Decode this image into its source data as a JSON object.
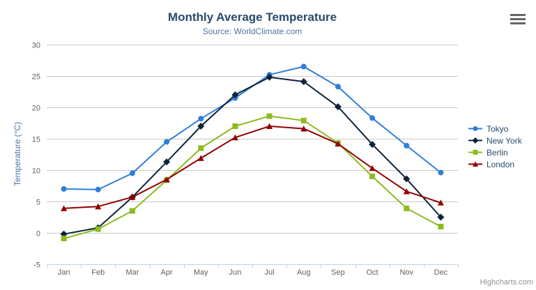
{
  "chart_data": {
    "type": "line",
    "title": "Monthly Average Temperature",
    "subtitle": "Source: WorldClimate.com",
    "xlabel": "",
    "ylabel": "Temperature (°C)",
    "categories": [
      "Jan",
      "Feb",
      "Mar",
      "Apr",
      "May",
      "Jun",
      "Jul",
      "Aug",
      "Sep",
      "Oct",
      "Nov",
      "Dec"
    ],
    "series": [
      {
        "name": "Tokyo",
        "color": "#2f7ed8",
        "marker": "circle",
        "values": [
          7.0,
          6.9,
          9.5,
          14.5,
          18.2,
          21.5,
          25.2,
          26.5,
          23.3,
          18.3,
          13.9,
          9.6
        ]
      },
      {
        "name": "New York",
        "color": "#0d233a",
        "marker": "diamond",
        "values": [
          -0.2,
          0.8,
          5.7,
          11.3,
          17.0,
          22.0,
          24.8,
          24.1,
          20.1,
          14.1,
          8.6,
          2.5
        ]
      },
      {
        "name": "Berlin",
        "color": "#8bbc21",
        "marker": "square",
        "values": [
          -0.9,
          0.6,
          3.5,
          8.4,
          13.5,
          17.0,
          18.6,
          17.9,
          14.3,
          9.0,
          3.9,
          1.0
        ]
      },
      {
        "name": "London",
        "color": "#910000",
        "marker": "triangle",
        "values": [
          3.9,
          4.2,
          5.7,
          8.5,
          11.9,
          15.2,
          17.0,
          16.6,
          14.2,
          10.3,
          6.6,
          4.8
        ]
      }
    ],
    "ylim": [
      -5,
      30
    ],
    "ytick_step": 5,
    "yticks": [
      -5,
      0,
      5,
      10,
      15,
      20,
      25,
      30
    ],
    "grid": true,
    "legend_position": "right",
    "colors": {
      "gridline": "#C8C8C8",
      "axis_line": "#C0D0E0",
      "axis_label": "#606060"
    }
  },
  "legend": {
    "items": [
      "Tokyo",
      "New York",
      "Berlin",
      "London"
    ]
  },
  "toolbar": {
    "menu_icon": "hamburger-menu-icon"
  },
  "credit": {
    "label": "Highcharts.com"
  }
}
